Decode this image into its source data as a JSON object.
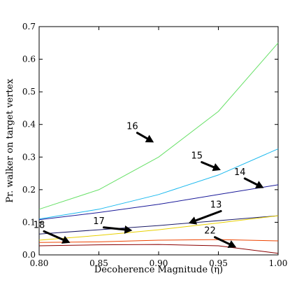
{
  "chart_data": {
    "type": "line",
    "title": "",
    "xlabel": "Decoherence Magnitude (η)",
    "ylabel": "Pr. walker on target vertex",
    "xlim": [
      0.8,
      1.0
    ],
    "ylim": [
      0.0,
      0.7
    ],
    "xticks": [
      "0.80",
      "0.85",
      "0.90",
      "0.95",
      "1.00"
    ],
    "yticks": [
      "0.0",
      "0.1",
      "0.2",
      "0.3",
      "0.4",
      "0.5",
      "0.6",
      "0.7"
    ],
    "grid": false,
    "legend": "none",
    "x": [
      0.8,
      0.85,
      0.9,
      0.95,
      1.0
    ],
    "series": [
      {
        "name": "16",
        "color": "#66e066",
        "values": [
          0.14,
          0.2,
          0.3,
          0.44,
          0.65
        ]
      },
      {
        "name": "15",
        "color": "#18b8ee",
        "values": [
          0.11,
          0.14,
          0.185,
          0.245,
          0.325
        ]
      },
      {
        "name": "14",
        "color": "#1a1a99",
        "values": [
          0.108,
          0.13,
          0.155,
          0.185,
          0.215
        ]
      },
      {
        "name": "13",
        "color": "#1a1a66",
        "values": [
          0.064,
          0.077,
          0.09,
          0.105,
          0.12
        ]
      },
      {
        "name": "17",
        "color": "#e8d000",
        "values": [
          0.045,
          0.06,
          0.077,
          0.098,
          0.12
        ]
      },
      {
        "name": "18",
        "color": "#ee4400",
        "values": [
          0.038,
          0.04,
          0.045,
          0.047,
          0.043
        ]
      },
      {
        "name": "22",
        "color": "#8b0000",
        "values": [
          0.028,
          0.031,
          0.032,
          0.028,
          0.005
        ]
      }
    ],
    "annotations": [
      {
        "text": "16",
        "label_at": [
          0.878,
          0.385
        ],
        "arrow_to": [
          0.896,
          0.345
        ]
      },
      {
        "text": "15",
        "label_at": [
          0.932,
          0.295
        ],
        "arrow_to": [
          0.952,
          0.26
        ]
      },
      {
        "text": "14",
        "label_at": [
          0.968,
          0.245
        ],
        "arrow_to": [
          0.988,
          0.205
        ]
      },
      {
        "text": "13",
        "label_at": [
          0.948,
          0.145
        ],
        "arrow_to": [
          0.925,
          0.097
        ]
      },
      {
        "text": "17",
        "label_at": [
          0.85,
          0.095
        ],
        "arrow_to": [
          0.878,
          0.075
        ]
      },
      {
        "text": "18",
        "label_at": [
          0.8,
          0.083
        ],
        "arrow_to": [
          0.826,
          0.037
        ]
      },
      {
        "text": "22",
        "label_at": [
          0.943,
          0.065
        ],
        "arrow_to": [
          0.965,
          0.023
        ]
      }
    ]
  }
}
